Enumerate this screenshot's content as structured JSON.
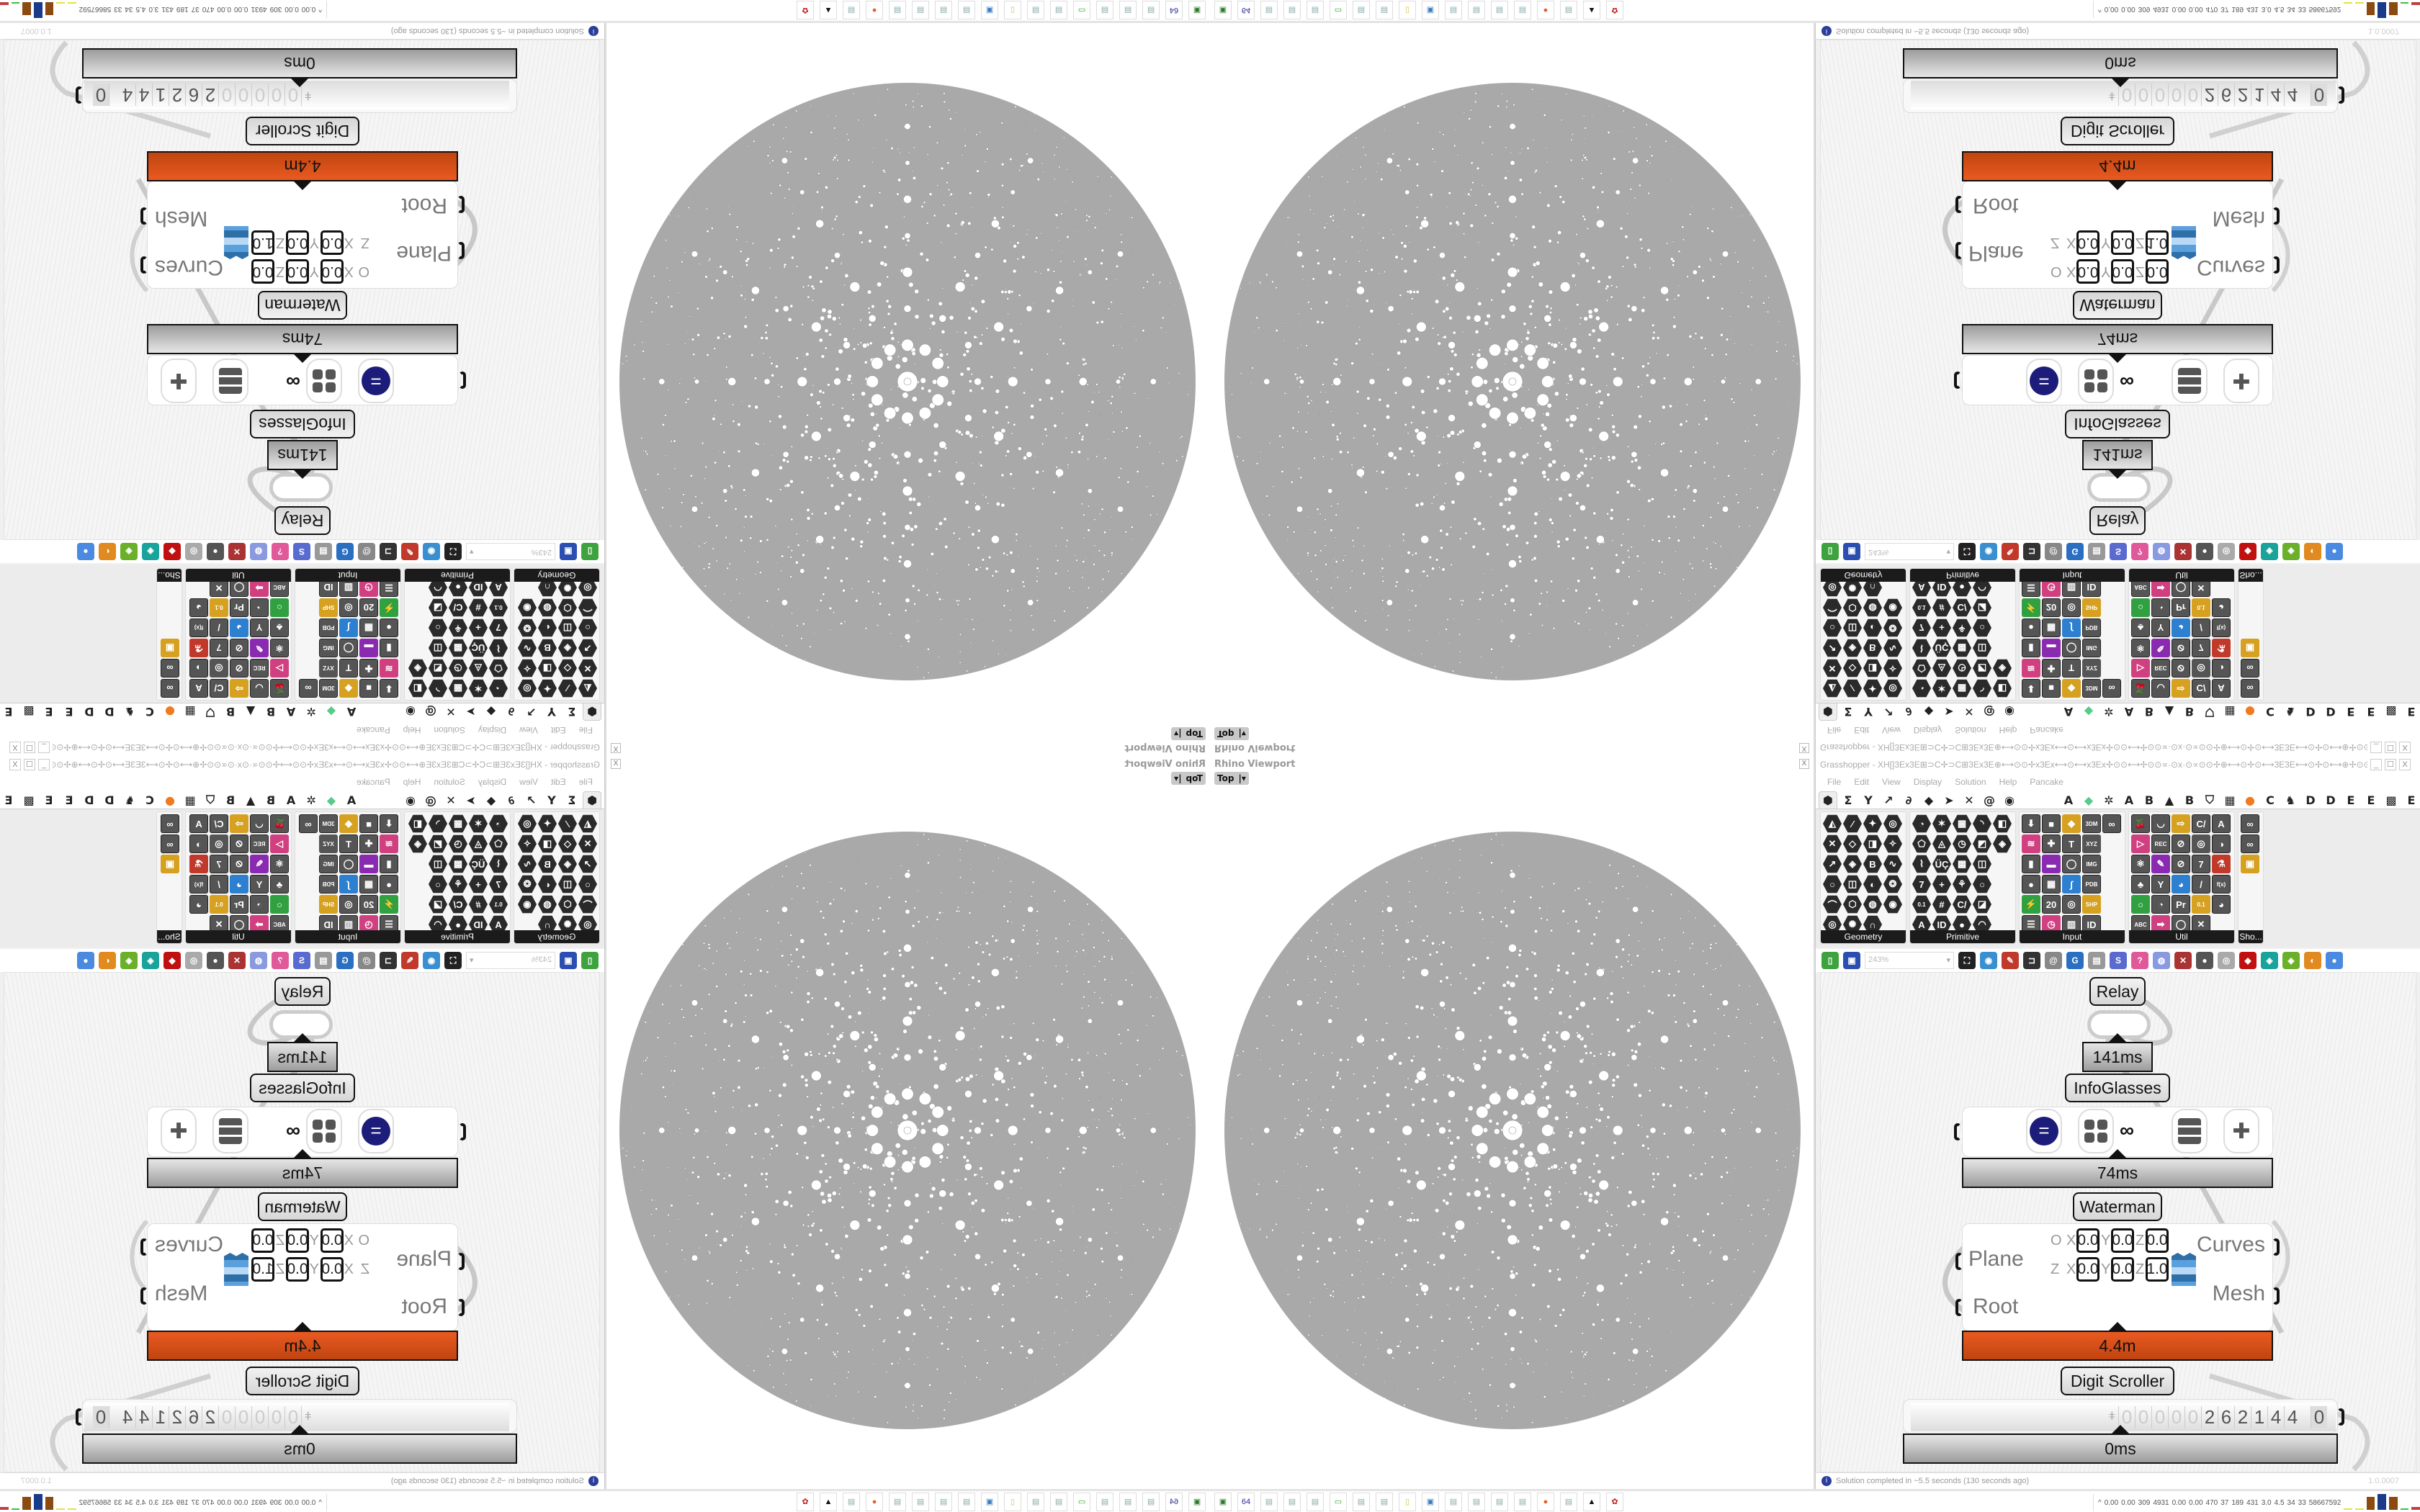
{
  "window": {
    "title": "Grasshopper - XH[]3Ex3E⊞⊃C✢⊃C⊞3Ex3E⊕⟷⊙⊙✢x3Ex⟷⊙⟷x3Ex✢⊙⊙⟷✢⊙⊙∝·⊙x·⊙∝⊙⊙✢⊕⟷⊙✢⊙⟷3E3E⟷⊙✢⊙⟷⊕✢⊙⊙∝·⊙x·⊙∝⊙⊙✢⊕⟷⊙⊙✢x3Ex⟷⊙...",
    "minimize": "_",
    "maximize": "☐",
    "close": "X"
  },
  "menu": [
    "File",
    "Edit",
    "View",
    "Display",
    "Solution",
    "Help",
    "Pancake"
  ],
  "tabs": [
    {
      "icon": "hexagon-icon",
      "glyph": "⬢"
    },
    {
      "icon": "sigma-icon",
      "glyph": "Σ"
    },
    {
      "icon": "fork-icon",
      "glyph": "Y"
    },
    {
      "icon": "arrow-icon",
      "glyph": "↗"
    },
    {
      "icon": "curl-icon",
      "glyph": "∂"
    },
    {
      "icon": "surface-icon",
      "glyph": "◆"
    },
    {
      "icon": "pointer-icon",
      "glyph": "➤"
    },
    {
      "icon": "cross-icon",
      "glyph": "✕"
    },
    {
      "icon": "snail-icon",
      "glyph": "@"
    },
    {
      "icon": "eye-icon",
      "glyph": "◉"
    },
    {
      "label": "A"
    },
    {
      "icon": "gem-icon",
      "glyph": "◆"
    },
    {
      "icon": "gear-icon",
      "glyph": "✲"
    },
    {
      "label": "A"
    },
    {
      "label": "B"
    },
    {
      "icon": "mountain-icon",
      "glyph": "▲"
    },
    {
      "label": "B"
    },
    {
      "icon": "shield-icon",
      "glyph": "⛉"
    },
    {
      "icon": "grid-icon",
      "glyph": "▦"
    },
    {
      "icon": "orange-circle-icon",
      "glyph": "●"
    },
    {
      "label": "C"
    },
    {
      "icon": "bird-icon",
      "glyph": "♞"
    },
    {
      "label": "D"
    },
    {
      "label": "D"
    },
    {
      "label": "E"
    },
    {
      "label": "E"
    },
    {
      "icon": "dotted-grid-icon",
      "glyph": "▩"
    },
    {
      "label": "E"
    }
  ],
  "panels": [
    {
      "label": "Geometry",
      "style": "hex",
      "cols": 4,
      "icons": [
        "◭",
        "⁄",
        "✦",
        "◎",
        "✕",
        "◇",
        "◨",
        "✧",
        "↗",
        "◈",
        "B",
        "∿",
        "○",
        "◫",
        "◐",
        "❂",
        "⌒",
        "⬡",
        "◍",
        "◉",
        "◎",
        "✺",
        "∩"
      ]
    },
    {
      "label": "Primitive",
      "style": "hex",
      "cols": 5,
      "icons": [
        "◔",
        "✶",
        "▦",
        "◝",
        "◧",
        "⬠",
        "◬",
        "◷",
        "◩",
        "◈",
        "⌇",
        "ÜÇ",
        "▩",
        "◫",
        "",
        "7",
        "+",
        "⚘",
        "○",
        "",
        "0.1",
        "#",
        "C/",
        "◪",
        "",
        "A",
        "ID",
        "●",
        "◠",
        ""
      ]
    },
    {
      "label": "Input",
      "style": "tile",
      "cols": 5,
      "icons": [
        "⬇",
        "■",
        "◆",
        "3DM",
        "∞",
        "≋",
        "✚",
        "T",
        "XYZ",
        "",
        "▮",
        "▬",
        "◯",
        "IMG",
        "",
        "●",
        "▦",
        "∫",
        "PDB",
        "",
        "⚡",
        "20",
        "◎",
        "SHP",
        "",
        "☰",
        "◷",
        "▥",
        "ID",
        ""
      ]
    },
    {
      "label": "Util",
      "style": "tile",
      "cols": 5,
      "icons": [
        "🍒",
        "◡",
        "⇨",
        "C/",
        "A",
        "▷",
        "REC",
        "⊘",
        "◎",
        "◑",
        "⚛",
        "✎",
        "⊘",
        "7",
        "⚗",
        "♣",
        "Y",
        "◕",
        "/",
        "f(x)",
        "○",
        "◔",
        "Pr",
        "0.1",
        "◕",
        "ABC",
        "➡",
        "◯",
        "✕",
        ""
      ]
    },
    {
      "label": "Sho...",
      "style": "tile",
      "cols": 1,
      "icons": [
        "∞",
        "∞",
        "▣"
      ]
    }
  ],
  "toolbar": {
    "zoom": "243%",
    "icons": [
      {
        "name": "new-document-icon",
        "glyph": "▯",
        "color": "#3ea33e"
      },
      {
        "name": "save-icon",
        "glyph": "▣",
        "color": "#2b4fb0"
      },
      {
        "name": "zoom-extents-icon",
        "glyph": "⛶",
        "color": "#222"
      },
      {
        "name": "preview-eye-icon",
        "glyph": "◉",
        "color": "#3a8fd0"
      },
      {
        "name": "sketch-pen-icon",
        "glyph": "✎",
        "color": "#c0392b"
      },
      {
        "name": "cluster-icon",
        "glyph": "⊐",
        "color": "#333"
      },
      {
        "name": "email-icon",
        "glyph": "@",
        "color": "#888"
      },
      {
        "name": "gha-icon",
        "glyph": "G",
        "color": "#2a6fc2"
      },
      {
        "name": "image-export-icon",
        "glyph": "▤",
        "color": "#999"
      },
      {
        "name": "search-icon",
        "glyph": "S",
        "color": "#5a6bd0"
      },
      {
        "name": "package-icon",
        "glyph": "?",
        "color": "#e05a9a"
      },
      {
        "name": "bulb-icon",
        "glyph": "◍",
        "color": "#8a9ae0"
      },
      {
        "name": "wires-icon",
        "glyph": "✕",
        "color": "#a33"
      },
      {
        "name": "sphere-grey-icon",
        "glyph": "●",
        "color": "#555"
      },
      {
        "name": "ring-icon",
        "glyph": "◎",
        "color": "#aaa"
      },
      {
        "name": "red-box-icon",
        "glyph": "◆",
        "color": "#c01010"
      },
      {
        "name": "teal-shape-icon",
        "glyph": "◈",
        "color": "#1aa39a"
      },
      {
        "name": "green-shape-icon",
        "glyph": "◈",
        "color": "#6ab02a"
      },
      {
        "name": "orange-sphere-icon",
        "glyph": "◐",
        "color": "#e08a20"
      },
      {
        "name": "blue-sphere-icon",
        "glyph": "●",
        "color": "#4a8ae0"
      }
    ]
  },
  "viewport": {
    "title": "Rhino Viewport",
    "view": "Top",
    "close": "X"
  },
  "canvas": {
    "relay": {
      "label": "Relay",
      "time": "141ms"
    },
    "infoglasses": {
      "label": "InfoGlasses",
      "time": "74ms",
      "icons": [
        "equals-circle-icon",
        "four-dots-icon",
        "glasses-info-icon",
        "drawers-icon",
        "puzzle-icon"
      ]
    },
    "waterman": {
      "label": "Waterman",
      "time": "4.4m",
      "inputs": [
        "Plane",
        "Root"
      ],
      "outputs": [
        "Curves",
        "Mesh"
      ],
      "origin": {
        "label": "O",
        "x": "0.0",
        "y": "0.0",
        "z": "0.0"
      },
      "zaxis": {
        "label": "Z",
        "x": "0.0",
        "y": "0.0",
        "z": "1.0"
      },
      "axis_labels": {
        "x": "X",
        "y": "Y",
        "z": "Z"
      }
    },
    "scroller": {
      "label": "Digit Scroller",
      "time": "0ms",
      "digits": [
        "0",
        "0",
        "0",
        "0",
        "0",
        "2",
        "6",
        "2",
        "1",
        "4",
        "4",
        "0"
      ]
    }
  },
  "status": {
    "message": "Solution completed in ~5.5 seconds (130 seconds ago)",
    "version": "1.0.0007"
  },
  "taskbar": {
    "icons": [
      {
        "name": "green-app-icon",
        "glyph": "▣",
        "color": "#2a7a2a"
      },
      {
        "name": "floppy-64-icon",
        "glyph": "64",
        "color": "#2b2b9a"
      },
      {
        "name": "file-icon",
        "glyph": "▤",
        "color": "#8aa"
      },
      {
        "name": "file-icon",
        "glyph": "▤",
        "color": "#8aa"
      },
      {
        "name": "file-icon",
        "glyph": "▤",
        "color": "#8aa"
      },
      {
        "name": "monitor-icon",
        "glyph": "▭",
        "color": "#3a3"
      },
      {
        "name": "file-icon",
        "glyph": "▤",
        "color": "#8aa"
      },
      {
        "name": "file-icon",
        "glyph": "▤",
        "color": "#8aa"
      },
      {
        "name": "folder-icon",
        "glyph": "▯",
        "color": "#d8c050"
      },
      {
        "name": "blue-app-icon",
        "glyph": "▣",
        "color": "#3a7ac0"
      },
      {
        "name": "file-icon",
        "glyph": "▤",
        "color": "#8aa"
      },
      {
        "name": "file-icon",
        "glyph": "▤",
        "color": "#8aa"
      },
      {
        "name": "file-icon",
        "glyph": "▤",
        "color": "#8aa"
      },
      {
        "name": "file-icon",
        "glyph": "▤",
        "color": "#8aa"
      },
      {
        "name": "firefox-icon",
        "glyph": "●",
        "color": "#e0602a"
      },
      {
        "name": "file-icon",
        "glyph": "▤",
        "color": "#8aa"
      },
      {
        "name": "black-app-icon",
        "glyph": "▲",
        "color": "#111"
      },
      {
        "name": "red-app-icon",
        "glyph": "✿",
        "color": "#c01818"
      }
    ],
    "tray": [
      "0.00",
      "0.00",
      "309",
      "4931",
      "0.00",
      "0.00",
      "470",
      "37",
      "189",
      "431",
      "3.0",
      "4.5",
      "34",
      "33",
      "58667592"
    ],
    "tray_arrow": "^"
  },
  "colors": {
    "accent_orange": "#d9501a",
    "wire": "#c8c8c8",
    "sphere": "#a9a9a9"
  }
}
